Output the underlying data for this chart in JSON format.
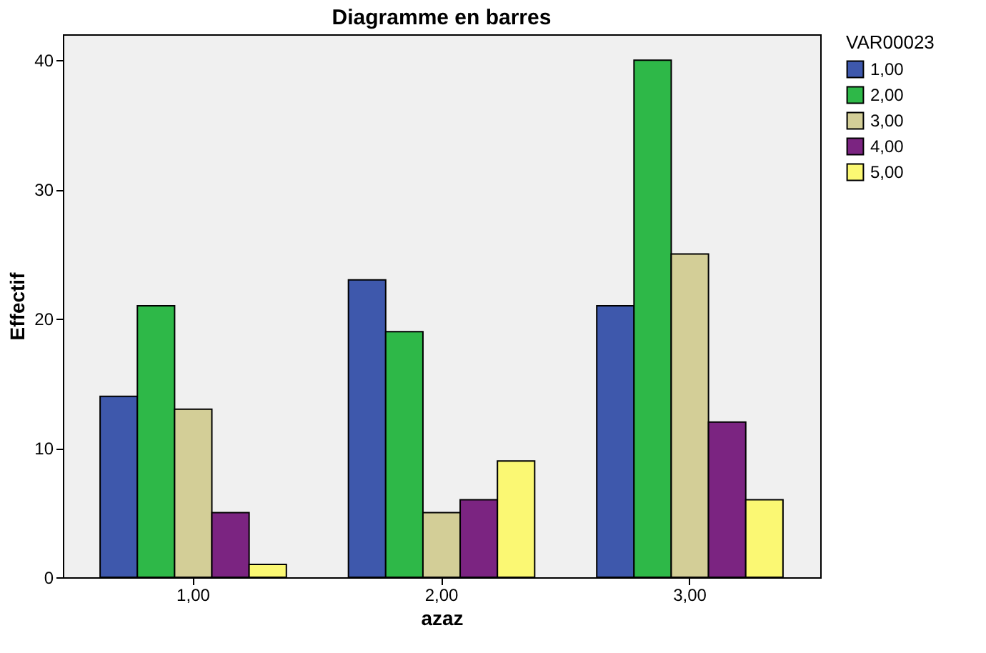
{
  "chart_data": {
    "type": "bar",
    "title": "Diagramme en barres",
    "xlabel": "azaz",
    "ylabel": "Effectif",
    "legend_title": "VAR00023",
    "categories": [
      "1,00",
      "2,00",
      "3,00"
    ],
    "series": [
      {
        "name": "1,00",
        "color": "#3e58ac",
        "values": [
          14,
          23,
          21
        ]
      },
      {
        "name": "2,00",
        "color": "#2eb848",
        "values": [
          21,
          19,
          40
        ]
      },
      {
        "name": "3,00",
        "color": "#d3ce97",
        "values": [
          13,
          5,
          25
        ]
      },
      {
        "name": "4,00",
        "color": "#7b2481",
        "values": [
          5,
          6,
          12
        ]
      },
      {
        "name": "5,00",
        "color": "#fbf873",
        "values": [
          1,
          9,
          6
        ]
      }
    ],
    "ylim": [
      0,
      42
    ],
    "yticks": [
      0,
      10,
      20,
      30,
      40
    ],
    "grid": false,
    "legend": "top right"
  }
}
